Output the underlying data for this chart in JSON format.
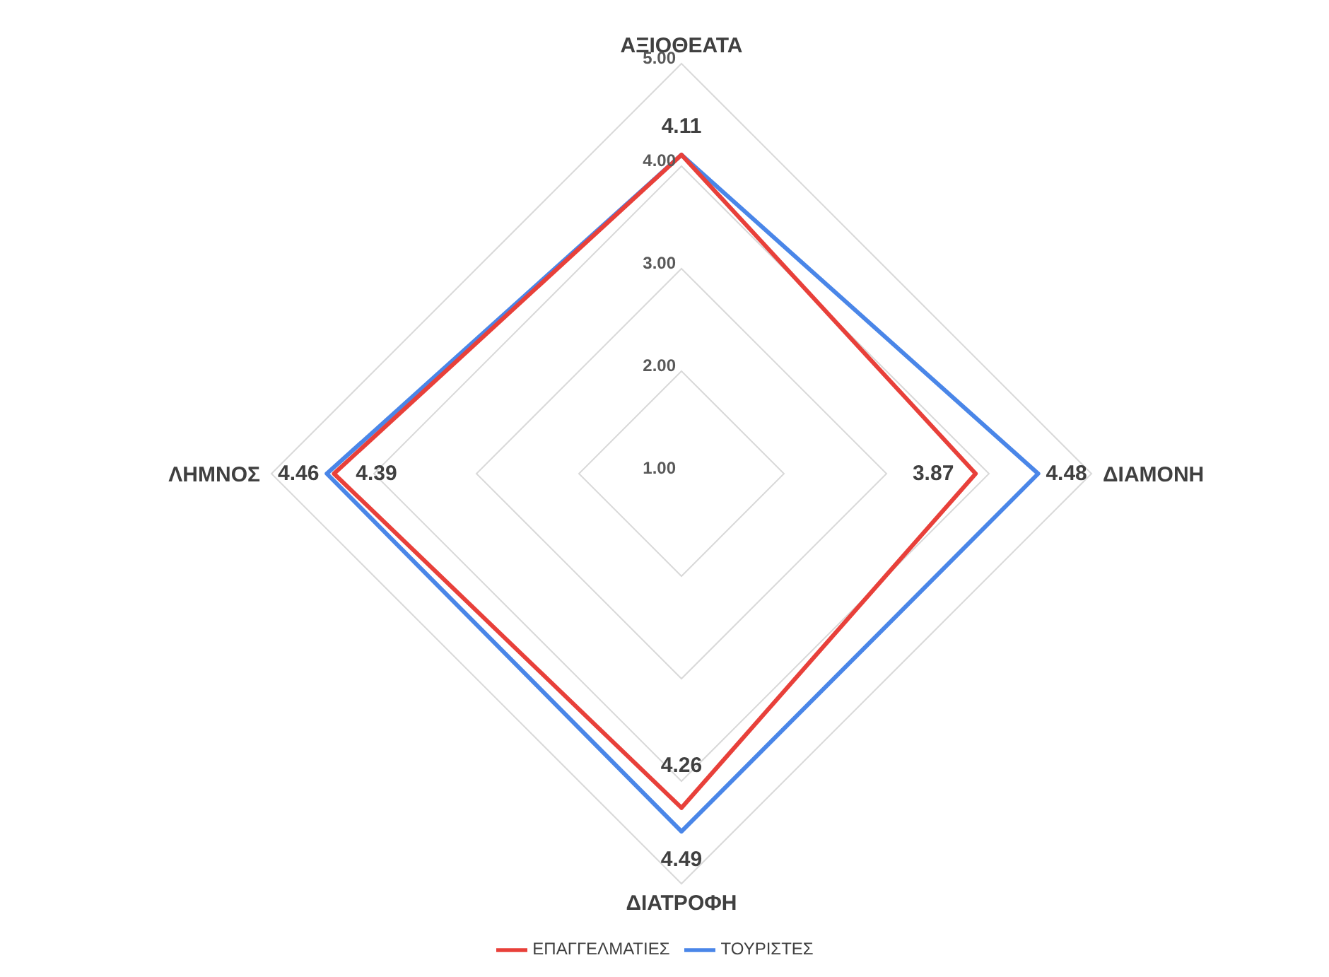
{
  "chart_data": {
    "type": "radar",
    "categories": [
      "ΑΞΙΟΘΕΑΤΑ",
      "ΔΙΑΜΟΝΗ",
      "ΔΙΑΤΡΟΦΗ",
      "ΛΗΜΝΟΣ"
    ],
    "series": [
      {
        "name": "ΤΟΥΡΙΣΤΕΣ",
        "color": "#4a86e8",
        "values": [
          4.11,
          4.48,
          4.49,
          4.46
        ],
        "value_labels": [
          "4.11",
          "4.48",
          "4.49",
          "4.46"
        ]
      },
      {
        "name": "ΕΠΑΓΓΕΛΜΑΤΙΕΣ",
        "color": "#e8403a",
        "values": [
          4.11,
          3.87,
          4.26,
          4.39
        ],
        "value_labels": [
          null,
          "3.87",
          "4.26",
          "4.39"
        ]
      }
    ],
    "ylim": [
      1,
      5
    ],
    "yticks": [
      {
        "value": 1,
        "label": "1.00"
      },
      {
        "value": 2,
        "label": "2.00"
      },
      {
        "value": 3,
        "label": "3.00"
      },
      {
        "value": 4,
        "label": "4.00"
      },
      {
        "value": 5,
        "label": "5.00"
      }
    ],
    "grid": true,
    "legend": "bottom",
    "marker": "none",
    "line_style": "solid"
  }
}
